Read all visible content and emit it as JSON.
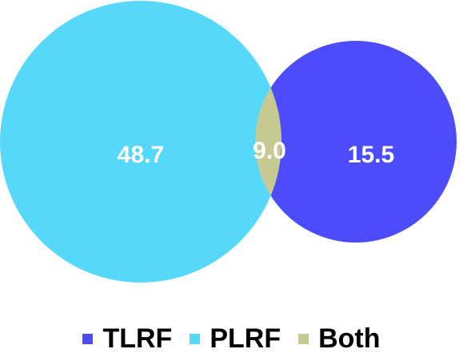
{
  "colors": {
    "tlrf": "#4c4cfb",
    "plrf": "#55d8f9",
    "both": "#c6ca90",
    "text": "#ffffff"
  },
  "regions": {
    "plrf_only": "48.7",
    "both": "9.0",
    "tlrf_only": "15.5"
  },
  "legend": [
    {
      "label": "TLRF",
      "color": "#4c4cfb"
    },
    {
      "label": "PLRF",
      "color": "#55d8f9"
    },
    {
      "label": "Both",
      "color": "#c6ca90"
    }
  ]
}
